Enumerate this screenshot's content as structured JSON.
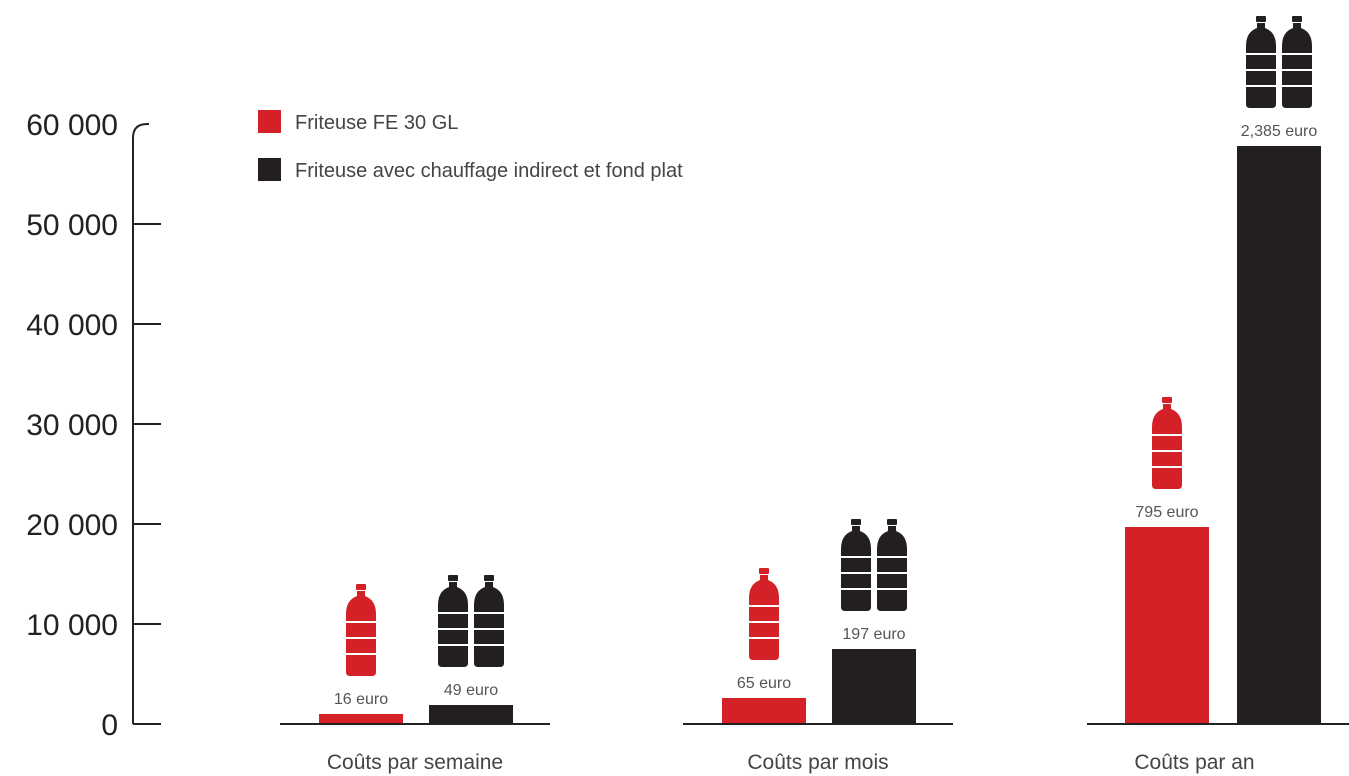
{
  "chart_data": {
    "type": "bar",
    "categories": [
      "Coûts par semaine",
      "Coûts par mois",
      "Coûts par an"
    ],
    "series": [
      {
        "name": "Friteuse FE 30 GL",
        "color": "#d42128",
        "values": [
          1000,
          2600,
          19700
        ],
        "value_labels": [
          "16 euro",
          "65 euro",
          "795 euro"
        ],
        "bottle_counts": [
          1,
          1,
          1
        ]
      },
      {
        "name": "Friteuse avec chauffage indirect et fond plat",
        "color": "#231f20",
        "values": [
          1900,
          7500,
          57800
        ],
        "value_labels": [
          "49 euro",
          "197 euro",
          "2,385 euro"
        ],
        "bottle_counts": [
          2,
          2,
          2
        ]
      }
    ],
    "yticks": [
      "0",
      "10 000",
      "20 000",
      "30 000",
      "40 000",
      "50 000",
      "60 000"
    ],
    "ylim": [
      0,
      60000
    ],
    "grid": false,
    "legend_position": "top-left",
    "icon": "bottle-icon"
  }
}
